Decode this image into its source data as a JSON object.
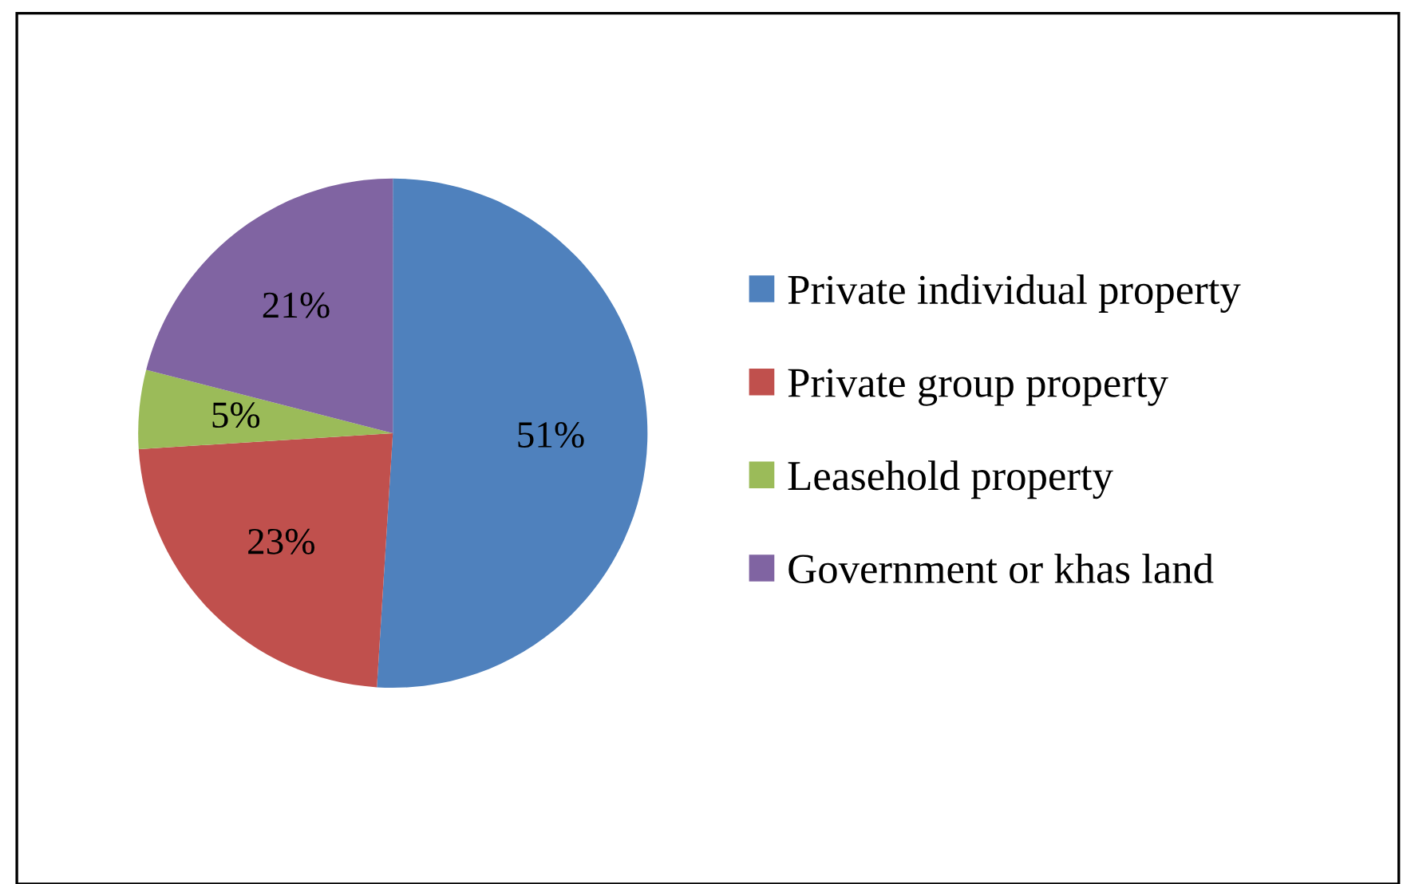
{
  "chart_data": {
    "type": "pie",
    "categories": [
      "Private individual property",
      "Private group property",
      "Leasehold property",
      "Government or khas land"
    ],
    "values": [
      51,
      23,
      5,
      21
    ],
    "colors": [
      "#4f81bd",
      "#c0504d",
      "#9bbb59",
      "#8064a2"
    ],
    "value_labels": [
      "51%",
      "23%",
      "5%",
      "21%"
    ],
    "legend": "right"
  }
}
